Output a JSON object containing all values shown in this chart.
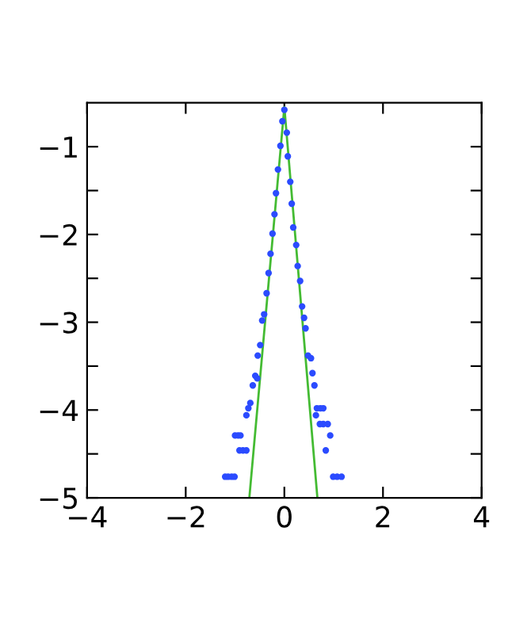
{
  "chart_data": {
    "type": "scatter",
    "marker": "circle",
    "grid": false,
    "legend": false,
    "xlim": [
      -4,
      4
    ],
    "ylim": [
      -5,
      -0.5
    ],
    "xticks": [
      -4,
      -2,
      0,
      2,
      4
    ],
    "yticks": [
      -5,
      {
        "value": -4.5,
        "label": null
      },
      -4,
      {
        "value": -3.5,
        "label": null
      },
      -3,
      {
        "value": -2.5,
        "label": null
      },
      -2,
      {
        "value": -1.5,
        "label": null
      },
      -1
    ],
    "series": [
      {
        "color": "#2b4bff",
        "x": [
          0,
          -0.04,
          0.05,
          -0.08,
          0.07,
          -0.13,
          0.12,
          -0.17,
          0.15,
          -0.2,
          0.18,
          -0.24,
          0.24,
          -0.28,
          0.27,
          -0.32,
          0.32,
          -0.36,
          0.36,
          -0.41,
          0.4,
          -0.45,
          0.43,
          -0.49,
          -0.54,
          0.48,
          0.54,
          -0.59,
          -0.55,
          0.57,
          -0.64,
          0.61,
          -0.69,
          -0.73,
          -0.77,
          0.66,
          0.73,
          0.79,
          0.64,
          0.72,
          0.79,
          0.88,
          -1.0,
          -0.94,
          -0.89,
          0.93,
          -0.91,
          -0.84,
          -0.77,
          0.84,
          -1.2,
          -1.14,
          -1.07,
          -1.01,
          0.99,
          1.07,
          1.16
        ],
        "values": [
          -0.58,
          -0.71,
          -0.84,
          -0.99,
          -1.11,
          -1.26,
          -1.4,
          -1.53,
          -1.65,
          -1.77,
          -1.92,
          -1.99,
          -2.12,
          -2.22,
          -2.36,
          -2.44,
          -2.53,
          -2.67,
          -2.82,
          -2.91,
          -2.95,
          -2.98,
          -3.07,
          -3.26,
          -3.38,
          -3.38,
          -3.41,
          -3.61,
          -3.64,
          -3.58,
          -3.72,
          -3.72,
          -3.92,
          -3.98,
          -4.06,
          -3.98,
          -3.98,
          -3.98,
          -4.06,
          -4.16,
          -4.16,
          -4.16,
          -4.29,
          -4.29,
          -4.29,
          -4.29,
          -4.46,
          -4.46,
          -4.46,
          -4.46,
          -4.76,
          -4.76,
          -4.76,
          -4.76,
          -4.76,
          -4.76,
          -4.76
        ]
      },
      {
        "type": "line",
        "color": "#44bb33",
        "marker": "none",
        "line_style": "solid",
        "x": [
          -0.71,
          0,
          0.67
        ],
        "values": [
          -5,
          -0.55,
          -5
        ]
      }
    ]
  }
}
